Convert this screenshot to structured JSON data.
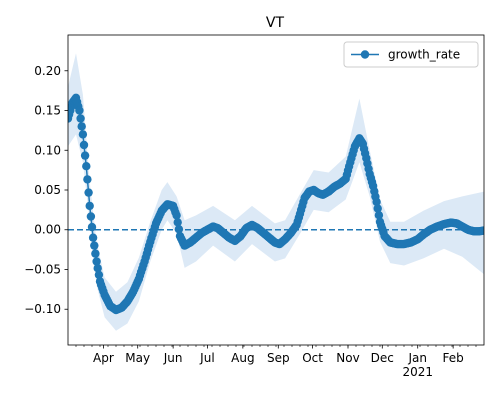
{
  "chart_data": {
    "type": "line",
    "title": "VT",
    "xlabel": "",
    "ylabel": "",
    "x_start": "2020-03-01",
    "x_end": "2021-02-28",
    "ylim": [
      -0.145,
      0.245
    ],
    "y_ticks": [
      0.2,
      0.15,
      0.1,
      0.05,
      0.0,
      -0.05,
      -0.1
    ],
    "y_tick_labels": [
      "0.20",
      "0.15",
      "0.10",
      "0.05",
      "0.00",
      "−0.05",
      "−0.10"
    ],
    "x_ticks": [
      {
        "date": "2020-04-01",
        "label": "Apr"
      },
      {
        "date": "2020-05-01",
        "label": "May"
      },
      {
        "date": "2020-06-01",
        "label": "Jun"
      },
      {
        "date": "2020-07-01",
        "label": "Jul"
      },
      {
        "date": "2020-08-01",
        "label": "Aug"
      },
      {
        "date": "2020-09-01",
        "label": "Sep"
      },
      {
        "date": "2020-10-01",
        "label": "Oct"
      },
      {
        "date": "2020-11-01",
        "label": "Nov"
      },
      {
        "date": "2020-12-01",
        "label": "Dec"
      },
      {
        "date": "2021-01-01",
        "label": "Jan",
        "sublabel": "2021"
      },
      {
        "date": "2021-02-01",
        "label": "Feb"
      }
    ],
    "reference_line": {
      "y": 0.0,
      "style": "dashed"
    },
    "legend": {
      "position": "top-right",
      "entries": [
        "growth_rate"
      ]
    },
    "grid": false,
    "series": [
      {
        "name": "growth_rate",
        "color": "#1f77b4",
        "band_color": "#dce9f6",
        "points": [
          {
            "date": "2020-03-01",
            "y": 0.14
          },
          {
            "date": "2020-03-05",
            "y": 0.16
          },
          {
            "date": "2020-03-08",
            "y": 0.166
          },
          {
            "date": "2020-03-11",
            "y": 0.15
          },
          {
            "date": "2020-03-14",
            "y": 0.12
          },
          {
            "date": "2020-03-17",
            "y": 0.08
          },
          {
            "date": "2020-03-20",
            "y": 0.03
          },
          {
            "date": "2020-03-23",
            "y": -0.01
          },
          {
            "date": "2020-03-26",
            "y": -0.04
          },
          {
            "date": "2020-03-29",
            "y": -0.065
          },
          {
            "date": "2020-04-02",
            "y": -0.082
          },
          {
            "date": "2020-04-07",
            "y": -0.096
          },
          {
            "date": "2020-04-12",
            "y": -0.101
          },
          {
            "date": "2020-04-17",
            "y": -0.098
          },
          {
            "date": "2020-04-22",
            "y": -0.09
          },
          {
            "date": "2020-04-27",
            "y": -0.078
          },
          {
            "date": "2020-05-02",
            "y": -0.062
          },
          {
            "date": "2020-05-07",
            "y": -0.04
          },
          {
            "date": "2020-05-12",
            "y": -0.015
          },
          {
            "date": "2020-05-17",
            "y": 0.008
          },
          {
            "date": "2020-05-22",
            "y": 0.024
          },
          {
            "date": "2020-05-27",
            "y": 0.032
          },
          {
            "date": "2020-06-01",
            "y": 0.03
          },
          {
            "date": "2020-06-04",
            "y": 0.018
          },
          {
            "date": "2020-06-07",
            "y": -0.008
          },
          {
            "date": "2020-06-11",
            "y": -0.02
          },
          {
            "date": "2020-06-16",
            "y": -0.016
          },
          {
            "date": "2020-06-21",
            "y": -0.01
          },
          {
            "date": "2020-06-26",
            "y": -0.004
          },
          {
            "date": "2020-07-01",
            "y": 0.0
          },
          {
            "date": "2020-07-06",
            "y": 0.004
          },
          {
            "date": "2020-07-10",
            "y": 0.002
          },
          {
            "date": "2020-07-15",
            "y": -0.004
          },
          {
            "date": "2020-07-20",
            "y": -0.01
          },
          {
            "date": "2020-07-25",
            "y": -0.014
          },
          {
            "date": "2020-07-30",
            "y": -0.008
          },
          {
            "date": "2020-08-04",
            "y": 0.002
          },
          {
            "date": "2020-08-09",
            "y": 0.006
          },
          {
            "date": "2020-08-14",
            "y": 0.002
          },
          {
            "date": "2020-08-19",
            "y": -0.004
          },
          {
            "date": "2020-08-24",
            "y": -0.01
          },
          {
            "date": "2020-08-29",
            "y": -0.016
          },
          {
            "date": "2020-09-02",
            "y": -0.018
          },
          {
            "date": "2020-09-07",
            "y": -0.012
          },
          {
            "date": "2020-09-12",
            "y": -0.004
          },
          {
            "date": "2020-09-17",
            "y": 0.006
          },
          {
            "date": "2020-09-20",
            "y": 0.02
          },
          {
            "date": "2020-09-24",
            "y": 0.04
          },
          {
            "date": "2020-09-28",
            "y": 0.048
          },
          {
            "date": "2020-10-02",
            "y": 0.05
          },
          {
            "date": "2020-10-06",
            "y": 0.046
          },
          {
            "date": "2020-10-10",
            "y": 0.044
          },
          {
            "date": "2020-10-15",
            "y": 0.048
          },
          {
            "date": "2020-10-20",
            "y": 0.054
          },
          {
            "date": "2020-10-25",
            "y": 0.058
          },
          {
            "date": "2020-10-30",
            "y": 0.064
          },
          {
            "date": "2020-11-03",
            "y": 0.085
          },
          {
            "date": "2020-11-07",
            "y": 0.105
          },
          {
            "date": "2020-11-11",
            "y": 0.115
          },
          {
            "date": "2020-11-14",
            "y": 0.108
          },
          {
            "date": "2020-11-17",
            "y": 0.09
          },
          {
            "date": "2020-11-20",
            "y": 0.07
          },
          {
            "date": "2020-11-23",
            "y": 0.055
          },
          {
            "date": "2020-11-26",
            "y": 0.035
          },
          {
            "date": "2020-11-29",
            "y": 0.01
          },
          {
            "date": "2020-12-03",
            "y": -0.008
          },
          {
            "date": "2020-12-08",
            "y": -0.016
          },
          {
            "date": "2020-12-14",
            "y": -0.018
          },
          {
            "date": "2020-12-20",
            "y": -0.018
          },
          {
            "date": "2020-12-26",
            "y": -0.016
          },
          {
            "date": "2021-01-01",
            "y": -0.012
          },
          {
            "date": "2021-01-06",
            "y": -0.006
          },
          {
            "date": "2021-01-12",
            "y": 0.0
          },
          {
            "date": "2021-01-18",
            "y": 0.004
          },
          {
            "date": "2021-01-24",
            "y": 0.007
          },
          {
            "date": "2021-01-30",
            "y": 0.009
          },
          {
            "date": "2021-02-04",
            "y": 0.008
          },
          {
            "date": "2021-02-09",
            "y": 0.004
          },
          {
            "date": "2021-02-14",
            "y": 0.0
          },
          {
            "date": "2021-02-19",
            "y": -0.002
          },
          {
            "date": "2021-02-24",
            "y": -0.002
          },
          {
            "date": "2021-02-28",
            "y": -0.001
          }
        ],
        "band": [
          {
            "date": "2020-03-01",
            "lo": 0.105,
            "hi": 0.18
          },
          {
            "date": "2020-03-08",
            "lo": 0.12,
            "hi": 0.222
          },
          {
            "date": "2020-03-14",
            "lo": 0.085,
            "hi": 0.17
          },
          {
            "date": "2020-03-20",
            "lo": 0.01,
            "hi": 0.06
          },
          {
            "date": "2020-03-26",
            "lo": -0.07,
            "hi": -0.015
          },
          {
            "date": "2020-04-02",
            "lo": -0.11,
            "hi": -0.06
          },
          {
            "date": "2020-04-12",
            "lo": -0.127,
            "hi": -0.078
          },
          {
            "date": "2020-04-22",
            "lo": -0.118,
            "hi": -0.066
          },
          {
            "date": "2020-05-02",
            "lo": -0.09,
            "hi": -0.035
          },
          {
            "date": "2020-05-12",
            "lo": -0.04,
            "hi": 0.01
          },
          {
            "date": "2020-05-22",
            "lo": 0.0,
            "hi": 0.05
          },
          {
            "date": "2020-05-27",
            "lo": 0.012,
            "hi": 0.06
          },
          {
            "date": "2020-06-04",
            "lo": -0.005,
            "hi": 0.042
          },
          {
            "date": "2020-06-11",
            "lo": -0.048,
            "hi": 0.012
          },
          {
            "date": "2020-06-21",
            "lo": -0.04,
            "hi": 0.018
          },
          {
            "date": "2020-07-06",
            "lo": -0.02,
            "hi": 0.03
          },
          {
            "date": "2020-07-25",
            "lo": -0.04,
            "hi": 0.012
          },
          {
            "date": "2020-08-09",
            "lo": -0.018,
            "hi": 0.03
          },
          {
            "date": "2020-08-29",
            "lo": -0.04,
            "hi": 0.008
          },
          {
            "date": "2020-09-07",
            "lo": -0.036,
            "hi": 0.012
          },
          {
            "date": "2020-09-20",
            "lo": -0.005,
            "hi": 0.045
          },
          {
            "date": "2020-10-02",
            "lo": 0.025,
            "hi": 0.075
          },
          {
            "date": "2020-10-15",
            "lo": 0.022,
            "hi": 0.072
          },
          {
            "date": "2020-10-30",
            "lo": 0.038,
            "hi": 0.092
          },
          {
            "date": "2020-11-11",
            "lo": 0.085,
            "hi": 0.165
          },
          {
            "date": "2020-11-20",
            "lo": 0.042,
            "hi": 0.1
          },
          {
            "date": "2020-11-29",
            "lo": -0.015,
            "hi": 0.038
          },
          {
            "date": "2020-12-08",
            "lo": -0.042,
            "hi": 0.01
          },
          {
            "date": "2020-12-20",
            "lo": -0.045,
            "hi": 0.01
          },
          {
            "date": "2021-01-06",
            "lo": -0.036,
            "hi": 0.024
          },
          {
            "date": "2021-01-24",
            "lo": -0.024,
            "hi": 0.036
          },
          {
            "date": "2021-02-09",
            "lo": -0.034,
            "hi": 0.042
          },
          {
            "date": "2021-02-28",
            "lo": -0.056,
            "hi": 0.048
          }
        ]
      }
    ]
  }
}
